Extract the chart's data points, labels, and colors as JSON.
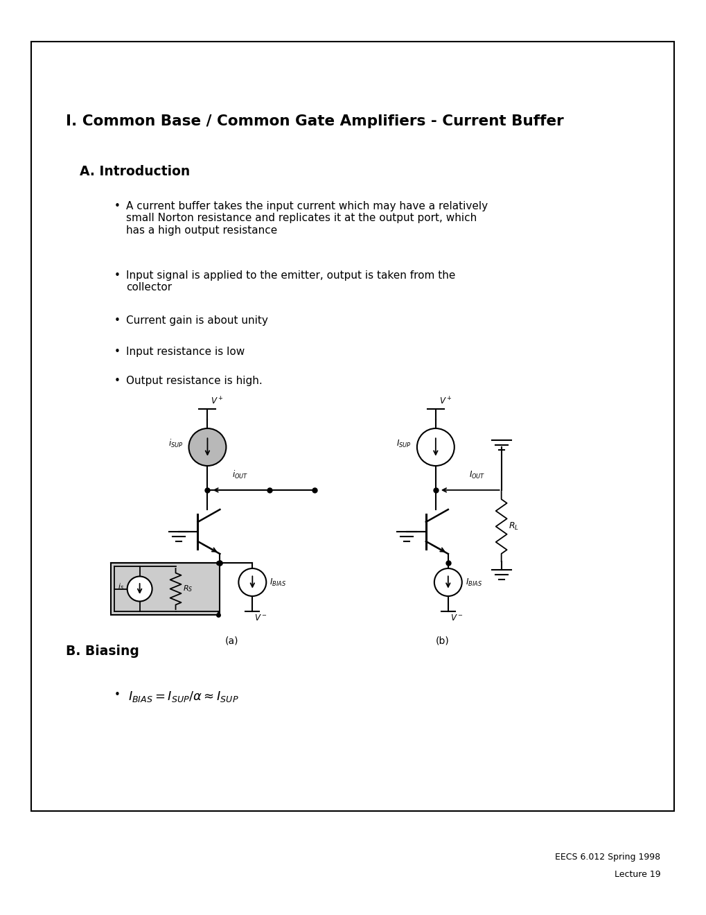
{
  "title": "I. Common Base / Common Gate Amplifiers - Current Buffer",
  "section_a": "A. Introduction",
  "bullets": [
    "A current buffer takes the input current which may have a relatively\nsmall Norton resistance and replicates it at the output port, which\nhas a high output resistance",
    "Input signal is applied to the emitter, output is taken from the\ncollector",
    "Current gain is about unity",
    "Input resistance is low",
    "Output resistance is high."
  ],
  "section_b": "B. Biasing",
  "caption_a": "(a)",
  "caption_b": "(b)",
  "footer_line1": "EECS 6.012 Spring 1998",
  "footer_line2": "Lecture 19",
  "bg_color": "#ffffff",
  "border_color": "#000000"
}
